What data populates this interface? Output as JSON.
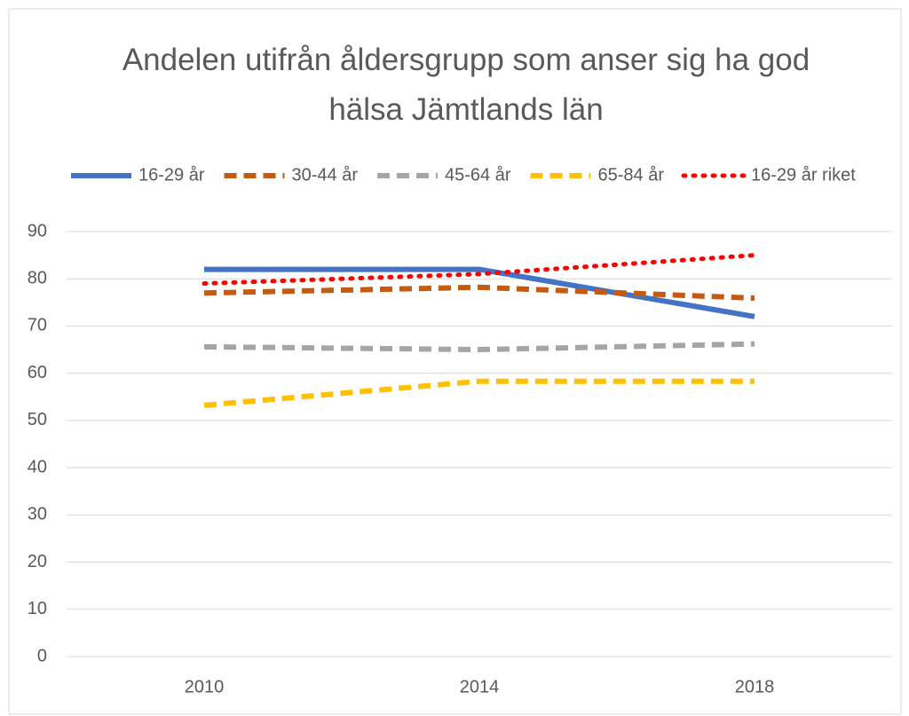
{
  "chart_data": {
    "type": "line",
    "title": "Andelen utifrån åldersgrupp som anser sig ha god hälsa Jämtlands län",
    "categories": [
      "2010",
      "2014",
      "2018"
    ],
    "series": [
      {
        "name": "16-29 år",
        "color": "#4472c4",
        "dash": "solid",
        "values": [
          82,
          82,
          72
        ]
      },
      {
        "name": "30-44 år",
        "color": "#c55a11",
        "dash": "dash",
        "values": [
          77,
          78.2,
          75.9
        ]
      },
      {
        "name": "45-64 år",
        "color": "#a5a5a5",
        "dash": "dash",
        "values": [
          65.6,
          65,
          66.2
        ]
      },
      {
        "name": "65-84 år",
        "color": "#ffc000",
        "dash": "dash",
        "values": [
          53.2,
          58.3,
          58.3
        ]
      },
      {
        "name": "16-29 år riket",
        "color": "#ff0000",
        "dash": "dot",
        "values": [
          79,
          81,
          85
        ]
      }
    ],
    "ylim": [
      0,
      90
    ],
    "yticks": [
      0,
      10,
      20,
      30,
      40,
      50,
      60,
      70,
      80,
      90
    ],
    "grid": true,
    "legend": "top"
  }
}
